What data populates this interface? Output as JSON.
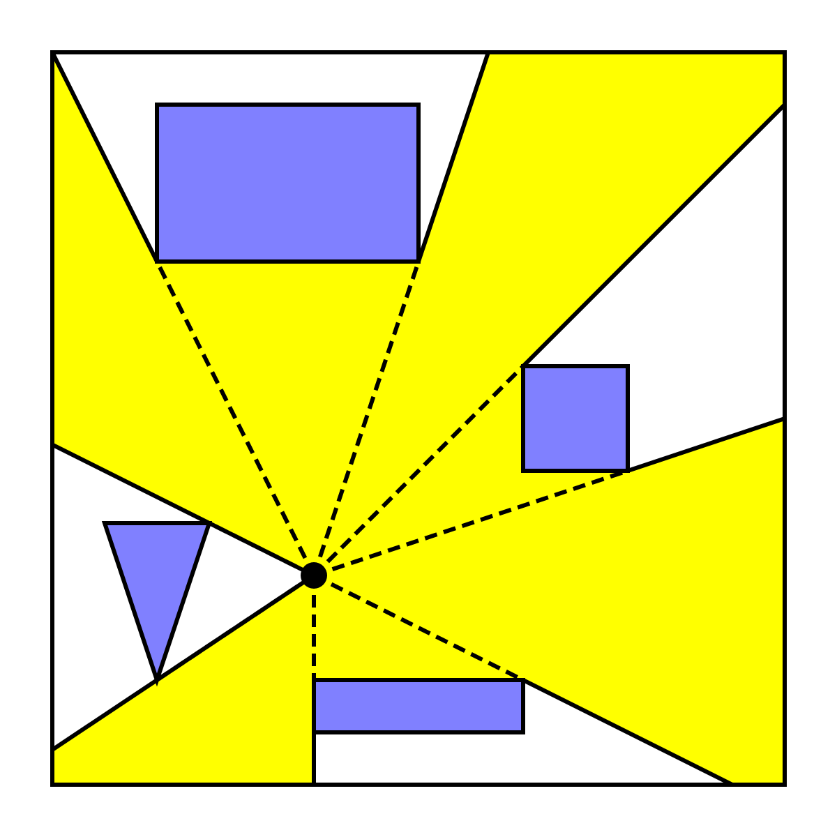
{
  "colors": {
    "background": "#ffffff",
    "visible_region": "#ffff00",
    "obstacle": "#8080ff",
    "outline": "#000000",
    "viewpoint": "#000000"
  },
  "diagram": {
    "kind": "visibility-polygon",
    "obstacles": [
      {
        "id": "top-rectangle",
        "shape": "rectangle"
      },
      {
        "id": "right-square",
        "shape": "square"
      },
      {
        "id": "left-triangle",
        "shape": "triangle"
      },
      {
        "id": "bottom-rectangle",
        "shape": "rectangle"
      }
    ],
    "sight_lines": 8,
    "viewpoint": "black dot"
  }
}
